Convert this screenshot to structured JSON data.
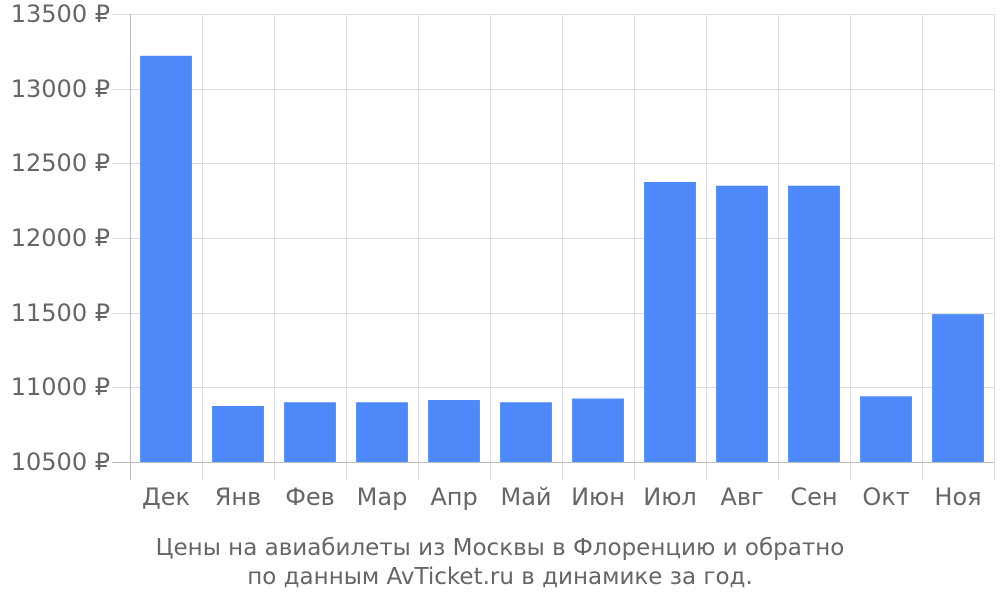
{
  "chart_data": {
    "type": "bar",
    "title": "",
    "xlabel": "",
    "ylabel": "",
    "categories": [
      "Дек",
      "Янв",
      "Фев",
      "Мар",
      "Апр",
      "Май",
      "Июн",
      "Июл",
      "Авг",
      "Сен",
      "Окт",
      "Ноя"
    ],
    "values": [
      13220,
      10875,
      10900,
      10900,
      10915,
      10900,
      10925,
      12375,
      12350,
      12350,
      10940,
      11490
    ],
    "ylim": [
      10500,
      13500
    ],
    "yticks": [
      10500,
      11000,
      11500,
      12000,
      12500,
      13000,
      13500
    ],
    "ytick_labels": [
      "10500 ₽",
      "11000 ₽",
      "11500 ₽",
      "12000 ₽",
      "12500 ₽",
      "13000 ₽",
      "13500 ₽"
    ],
    "grid": true,
    "bar_color": "#4d89f9",
    "grid_color": "#dddddd",
    "text_color": "#666666"
  },
  "caption": {
    "line1": "Цены на авиабилеты из Москвы в Флоренцию и обратно",
    "line2": "по данным AvTicket.ru в динамике за год."
  }
}
